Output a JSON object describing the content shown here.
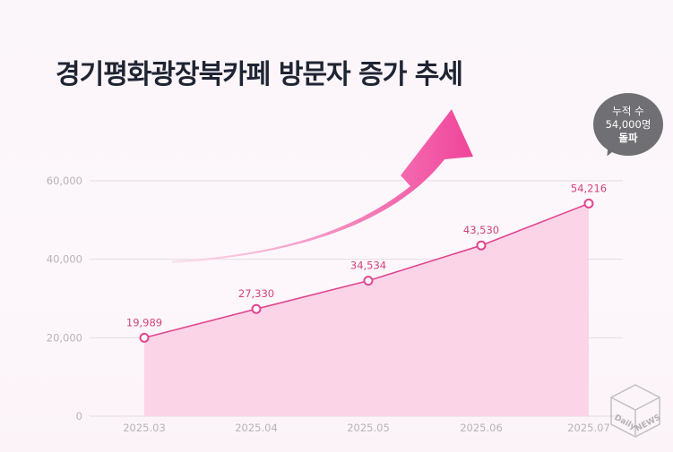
{
  "title": "경기평화광장북카페  방문자 증가 추세",
  "badge": {
    "line1": "누적 수",
    "line2": "54,000명",
    "line3": "돌파"
  },
  "watermark": {
    "line1": "Daily",
    "line2": "NEWS"
  },
  "colors": {
    "line": "#e0458f",
    "area": "#fcd2e7",
    "arrow_start": "#fbe3ef",
    "arrow_end": "#f0449a",
    "grid": "#e4dde2",
    "axis_text": "#b9b3b8",
    "value_text": "#d2447f"
  },
  "chart_data": {
    "type": "area",
    "categories": [
      "2025.03",
      "2025.04",
      "2025.05",
      "2025.06",
      "2025.07"
    ],
    "values": [
      19989,
      27330,
      34534,
      43530,
      54216
    ],
    "value_labels": [
      "19,989",
      "27,330",
      "34,534",
      "43,530",
      "54,216"
    ],
    "ylim": [
      0,
      60000
    ],
    "yticks": [
      0,
      20000,
      40000,
      60000
    ],
    "ytick_labels": [
      "0",
      "20,000",
      "40,000",
      "60,000"
    ],
    "grid": true,
    "xlabel": "",
    "ylabel": ""
  }
}
